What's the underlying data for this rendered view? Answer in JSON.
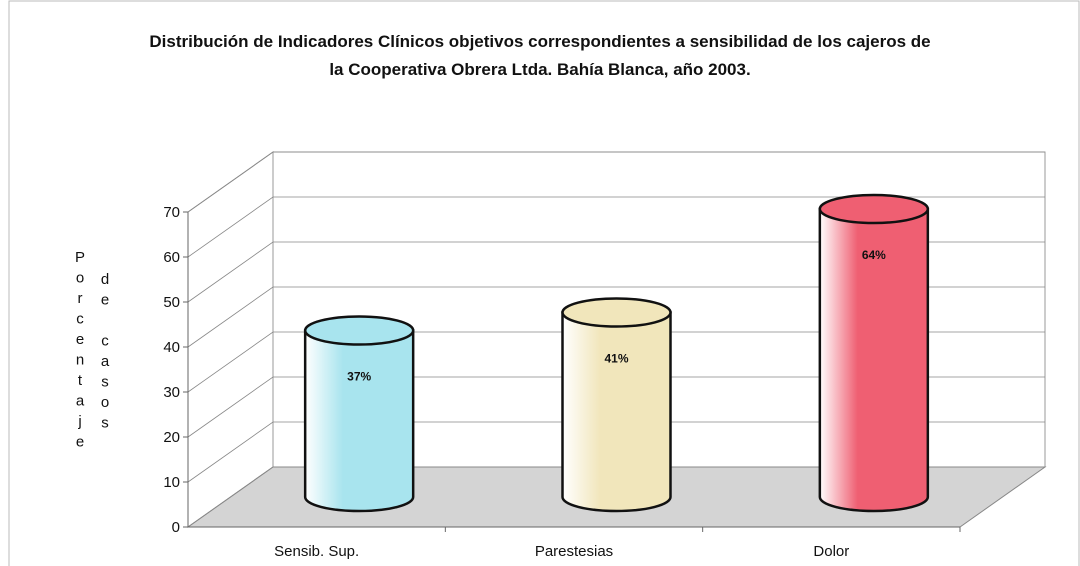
{
  "chart_data": {
    "type": "bar3d",
    "title": "Distribución de Indicadores Clínicos objetivos correspondientes a sensibilidad de los cajeros de la Cooperativa Obrera Ltda. Bahía Blanca, año 2003.",
    "y_label": [
      "Porcentaje",
      "de casos"
    ],
    "categories": [
      "Sensib. Sup.",
      "Parestesias",
      "Dolor"
    ],
    "values": [
      37,
      41,
      64
    ],
    "value_labels": [
      "37%",
      "41%",
      "64%"
    ],
    "colors": [
      "#a8e4ee",
      "#f1e6bb",
      "#ef5f72"
    ],
    "ylim": [
      0,
      70
    ],
    "yticks": [
      0,
      10,
      20,
      30,
      40,
      50,
      60,
      70
    ],
    "grid": true
  }
}
